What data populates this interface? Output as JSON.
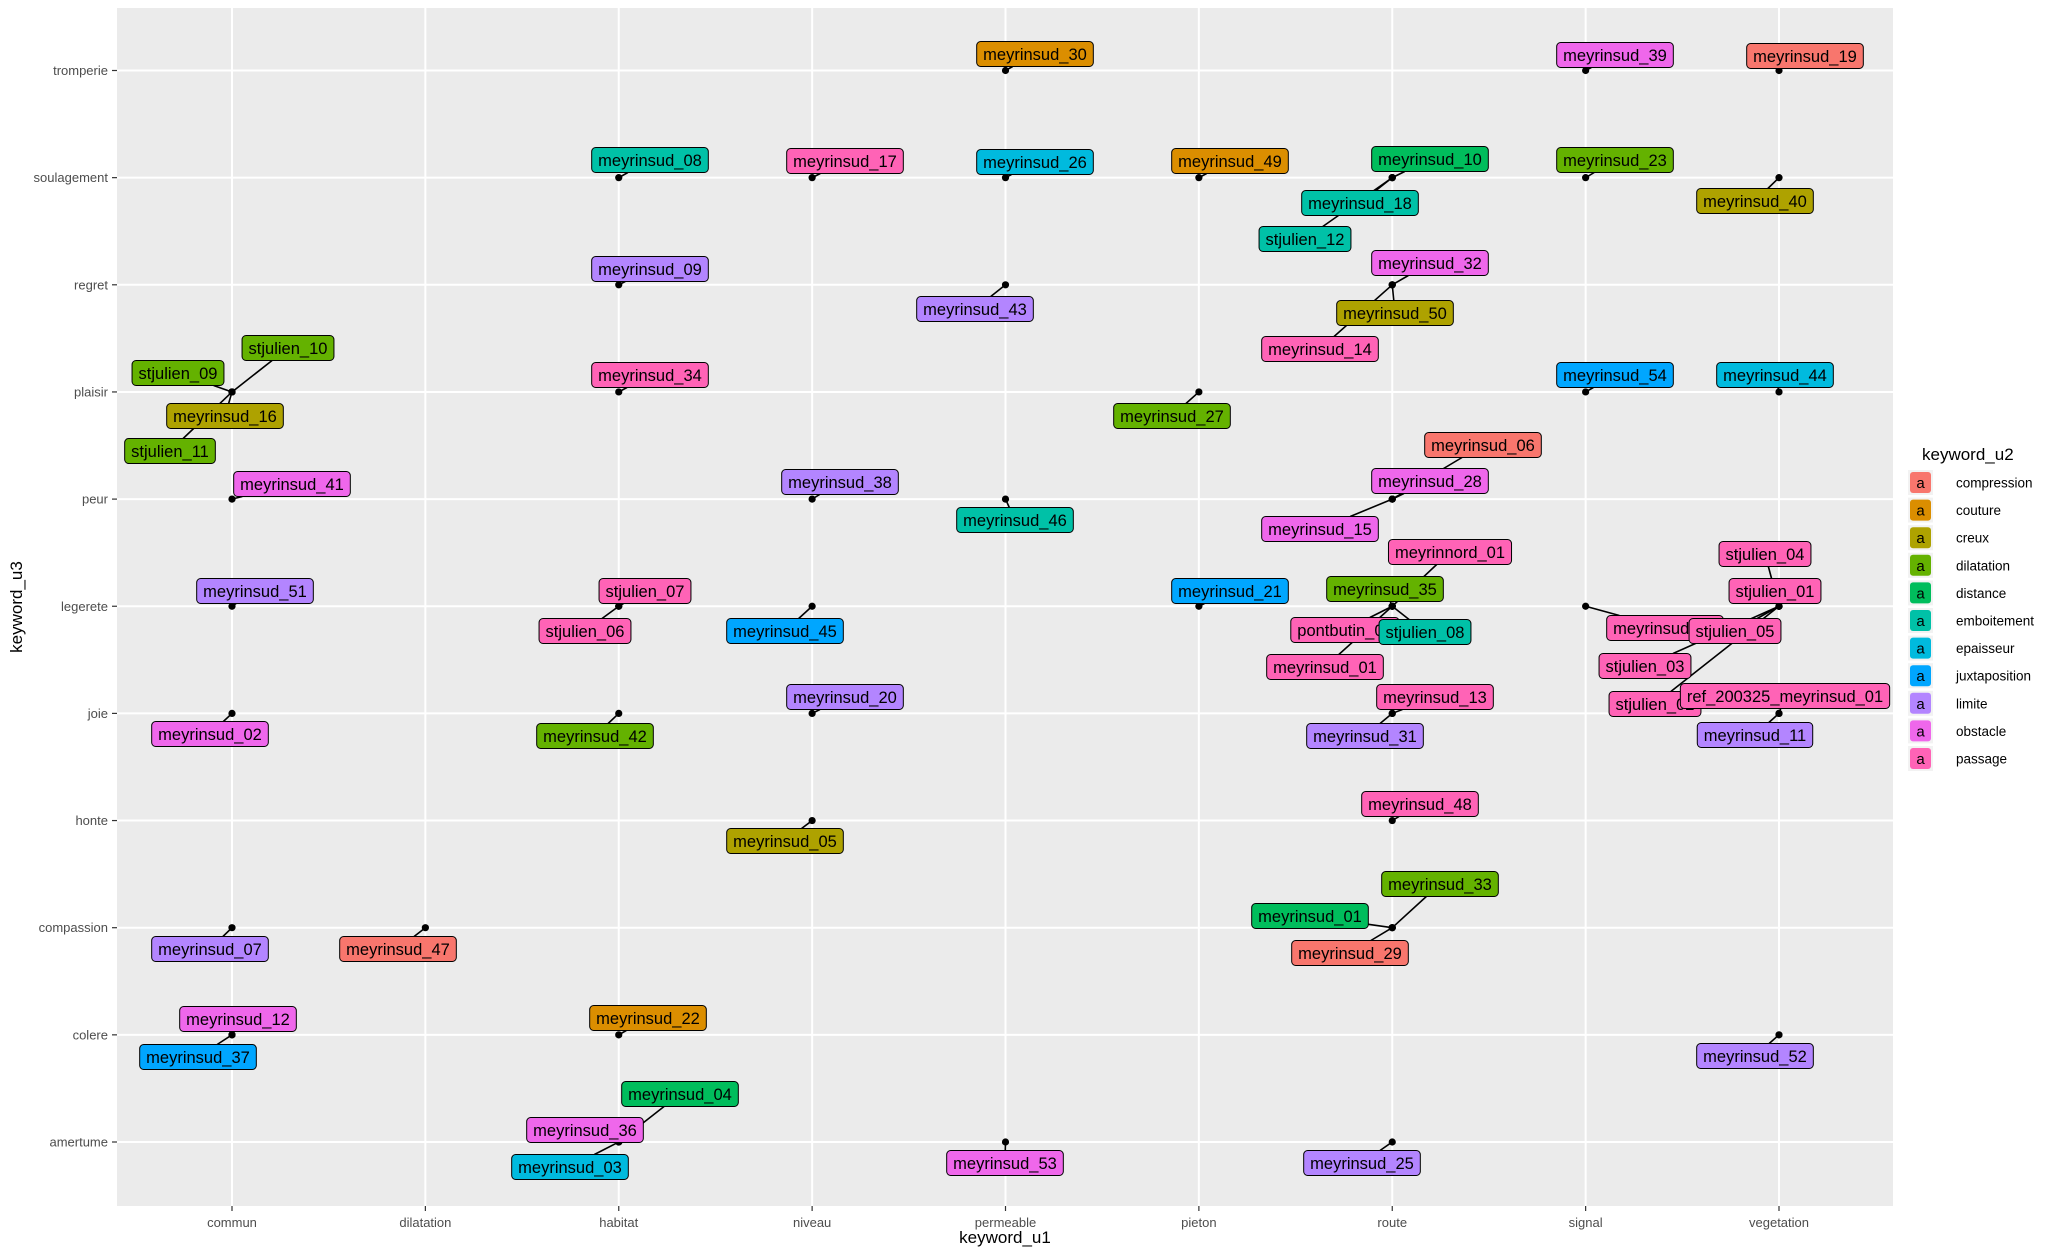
{
  "chart_data": {
    "type": "scatter",
    "xlabel": "keyword_u1",
    "ylabel": "keyword_u3",
    "x_categories": [
      "commun",
      "dilatation",
      "habitat",
      "niveau",
      "permeable",
      "pieton",
      "route",
      "signal",
      "vegetation"
    ],
    "y_categories": [
      "amertume",
      "colere",
      "compassion",
      "honte",
      "joie",
      "legerete",
      "peur",
      "plaisir",
      "regret",
      "soulagement",
      "tromperie"
    ],
    "legend": {
      "title": "keyword_u2",
      "key_glyph": "a",
      "position": "right",
      "items": [
        {
          "name": "compression",
          "color": "#F8766D"
        },
        {
          "name": "couture",
          "color": "#DB8E00"
        },
        {
          "name": "creux",
          "color": "#AEA200"
        },
        {
          "name": "dilatation",
          "color": "#64B200"
        },
        {
          "name": "distance",
          "color": "#00BD5C"
        },
        {
          "name": "emboitement",
          "color": "#00C1A7"
        },
        {
          "name": "epaisseur",
          "color": "#00BADE"
        },
        {
          "name": "juxtaposition",
          "color": "#00A6FF"
        },
        {
          "name": "limite",
          "color": "#B385FF"
        },
        {
          "name": "obstacle",
          "color": "#EF67EB"
        },
        {
          "name": "passage",
          "color": "#FF63B6"
        }
      ]
    },
    "points": [
      {
        "label": "meyrinsud_30",
        "x": "permeable",
        "y": "tromperie",
        "group": "couture"
      },
      {
        "label": "meyrinsud_39",
        "x": "signal",
        "y": "tromperie",
        "group": "obstacle"
      },
      {
        "label": "meyrinsud_19",
        "x": "vegetation",
        "y": "tromperie",
        "group": "compression"
      },
      {
        "label": "meyrinsud_08",
        "x": "habitat",
        "y": "soulagement",
        "group": "emboitement"
      },
      {
        "label": "meyrinsud_17",
        "x": "niveau",
        "y": "soulagement",
        "group": "passage"
      },
      {
        "label": "meyrinsud_26",
        "x": "permeable",
        "y": "soulagement",
        "group": "epaisseur"
      },
      {
        "label": "meyrinsud_49",
        "x": "pieton",
        "y": "soulagement",
        "group": "couture"
      },
      {
        "label": "meyrinsud_10",
        "x": "route",
        "y": "soulagement",
        "group": "distance"
      },
      {
        "label": "meyrinsud_18",
        "x": "route",
        "y": "soulagement",
        "group": "emboitement"
      },
      {
        "label": "stjulien_12",
        "x": "route",
        "y": "soulagement",
        "group": "emboitement"
      },
      {
        "label": "meyrinsud_23",
        "x": "signal",
        "y": "soulagement",
        "group": "dilatation"
      },
      {
        "label": "meyrinsud_40",
        "x": "vegetation",
        "y": "soulagement",
        "group": "creux"
      },
      {
        "label": "meyrinsud_09",
        "x": "habitat",
        "y": "regret",
        "group": "limite"
      },
      {
        "label": "meyrinsud_43",
        "x": "permeable",
        "y": "regret",
        "group": "limite"
      },
      {
        "label": "meyrinsud_32",
        "x": "route",
        "y": "regret",
        "group": "obstacle"
      },
      {
        "label": "meyrinsud_50",
        "x": "route",
        "y": "regret",
        "group": "creux"
      },
      {
        "label": "meyrinsud_14",
        "x": "route",
        "y": "regret",
        "group": "passage"
      },
      {
        "label": "stjulien_10",
        "x": "commun",
        "y": "plaisir",
        "group": "dilatation"
      },
      {
        "label": "stjulien_09",
        "x": "commun",
        "y": "plaisir",
        "group": "dilatation"
      },
      {
        "label": "meyrinsud_16",
        "x": "commun",
        "y": "plaisir",
        "group": "creux"
      },
      {
        "label": "stjulien_11",
        "x": "commun",
        "y": "plaisir",
        "group": "dilatation"
      },
      {
        "label": "meyrinsud_34",
        "x": "habitat",
        "y": "plaisir",
        "group": "passage"
      },
      {
        "label": "meyrinsud_27",
        "x": "pieton",
        "y": "plaisir",
        "group": "dilatation"
      },
      {
        "label": "meyrinsud_54",
        "x": "signal",
        "y": "plaisir",
        "group": "juxtaposition"
      },
      {
        "label": "meyrinsud_44",
        "x": "vegetation",
        "y": "plaisir",
        "group": "epaisseur"
      },
      {
        "label": "meyrinsud_41",
        "x": "commun",
        "y": "peur",
        "group": "obstacle"
      },
      {
        "label": "meyrinsud_38",
        "x": "niveau",
        "y": "peur",
        "group": "limite"
      },
      {
        "label": "meyrinsud_46",
        "x": "permeable",
        "y": "peur",
        "group": "emboitement"
      },
      {
        "label": "meyrinsud_06",
        "x": "route",
        "y": "peur",
        "group": "compression"
      },
      {
        "label": "meyrinsud_28",
        "x": "route",
        "y": "peur",
        "group": "obstacle"
      },
      {
        "label": "meyrinsud_15",
        "x": "route",
        "y": "peur",
        "group": "obstacle"
      },
      {
        "label": "meyrinsud_51",
        "x": "commun",
        "y": "legerete",
        "group": "limite"
      },
      {
        "label": "stjulien_07",
        "x": "habitat",
        "y": "legerete",
        "group": "passage"
      },
      {
        "label": "stjulien_06",
        "x": "habitat",
        "y": "legerete",
        "group": "passage"
      },
      {
        "label": "meyrinsud_45",
        "x": "niveau",
        "y": "legerete",
        "group": "juxtaposition"
      },
      {
        "label": "meyrinsud_21",
        "x": "pieton",
        "y": "legerete",
        "group": "juxtaposition"
      },
      {
        "label": "meyrinsud_35",
        "x": "route",
        "y": "legerete",
        "group": "dilatation"
      },
      {
        "label": "meyrinnord_01",
        "x": "route",
        "y": "legerete",
        "group": "passage"
      },
      {
        "label": "pontbutin_01",
        "x": "route",
        "y": "legerete",
        "group": "passage"
      },
      {
        "label": "stjulien_08",
        "x": "route",
        "y": "legerete",
        "group": "emboitement"
      },
      {
        "label": "meyrinsud_01",
        "x": "route",
        "y": "legerete",
        "group": "passage"
      },
      {
        "label": "meyrinsud_24",
        "x": "signal",
        "y": "legerete",
        "group": "passage"
      },
      {
        "label": "stjulien_04",
        "x": "vegetation",
        "y": "legerete",
        "group": "passage"
      },
      {
        "label": "stjulien_01",
        "x": "vegetation",
        "y": "legerete",
        "group": "passage"
      },
      {
        "label": "stjulien_05",
        "x": "vegetation",
        "y": "legerete",
        "group": "passage"
      },
      {
        "label": "stjulien_03",
        "x": "vegetation",
        "y": "legerete",
        "group": "passage"
      },
      {
        "label": "stjulien_02",
        "x": "vegetation",
        "y": "legerete",
        "group": "passage"
      },
      {
        "label": "meyrinsud_02",
        "x": "commun",
        "y": "joie",
        "group": "obstacle"
      },
      {
        "label": "meyrinsud_42",
        "x": "habitat",
        "y": "joie",
        "group": "dilatation"
      },
      {
        "label": "meyrinsud_20",
        "x": "niveau",
        "y": "joie",
        "group": "limite"
      },
      {
        "label": "meyrinsud_13",
        "x": "route",
        "y": "joie",
        "group": "passage"
      },
      {
        "label": "meyrinsud_31",
        "x": "route",
        "y": "joie",
        "group": "limite"
      },
      {
        "label": "ref_200325_meyrinsud_01",
        "x": "vegetation",
        "y": "joie",
        "group": "passage"
      },
      {
        "label": "meyrinsud_11",
        "x": "vegetation",
        "y": "joie",
        "group": "limite"
      },
      {
        "label": "meyrinsud_05",
        "x": "niveau",
        "y": "honte",
        "group": "creux"
      },
      {
        "label": "meyrinsud_48",
        "x": "route",
        "y": "honte",
        "group": "passage"
      },
      {
        "label": "meyrinsud_07",
        "x": "commun",
        "y": "compassion",
        "group": "limite"
      },
      {
        "label": "meyrinsud_47",
        "x": "dilatation",
        "y": "compassion",
        "group": "compression"
      },
      {
        "label": "meyrinsud_33",
        "x": "route",
        "y": "compassion",
        "group": "dilatation"
      },
      {
        "label": "meyrinsud_01",
        "x": "route",
        "y": "compassion",
        "group": "distance"
      },
      {
        "label": "meyrinsud_29",
        "x": "route",
        "y": "compassion",
        "group": "compression"
      },
      {
        "label": "meyrinsud_12",
        "x": "commun",
        "y": "colere",
        "group": "obstacle"
      },
      {
        "label": "meyrinsud_37",
        "x": "commun",
        "y": "colere",
        "group": "juxtaposition"
      },
      {
        "label": "meyrinsud_22",
        "x": "habitat",
        "y": "colere",
        "group": "couture"
      },
      {
        "label": "meyrinsud_52",
        "x": "vegetation",
        "y": "colere",
        "group": "limite"
      },
      {
        "label": "meyrinsud_04",
        "x": "habitat",
        "y": "amertume",
        "group": "distance"
      },
      {
        "label": "meyrinsud_36",
        "x": "habitat",
        "y": "amertume",
        "group": "obstacle"
      },
      {
        "label": "meyrinsud_03",
        "x": "habitat",
        "y": "amertume",
        "group": "epaisseur"
      },
      {
        "label": "meyrinsud_53",
        "x": "permeable",
        "y": "amertume",
        "group": "obstacle"
      },
      {
        "label": "meyrinsud_25",
        "x": "route",
        "y": "amertume",
        "group": "limite"
      }
    ]
  }
}
